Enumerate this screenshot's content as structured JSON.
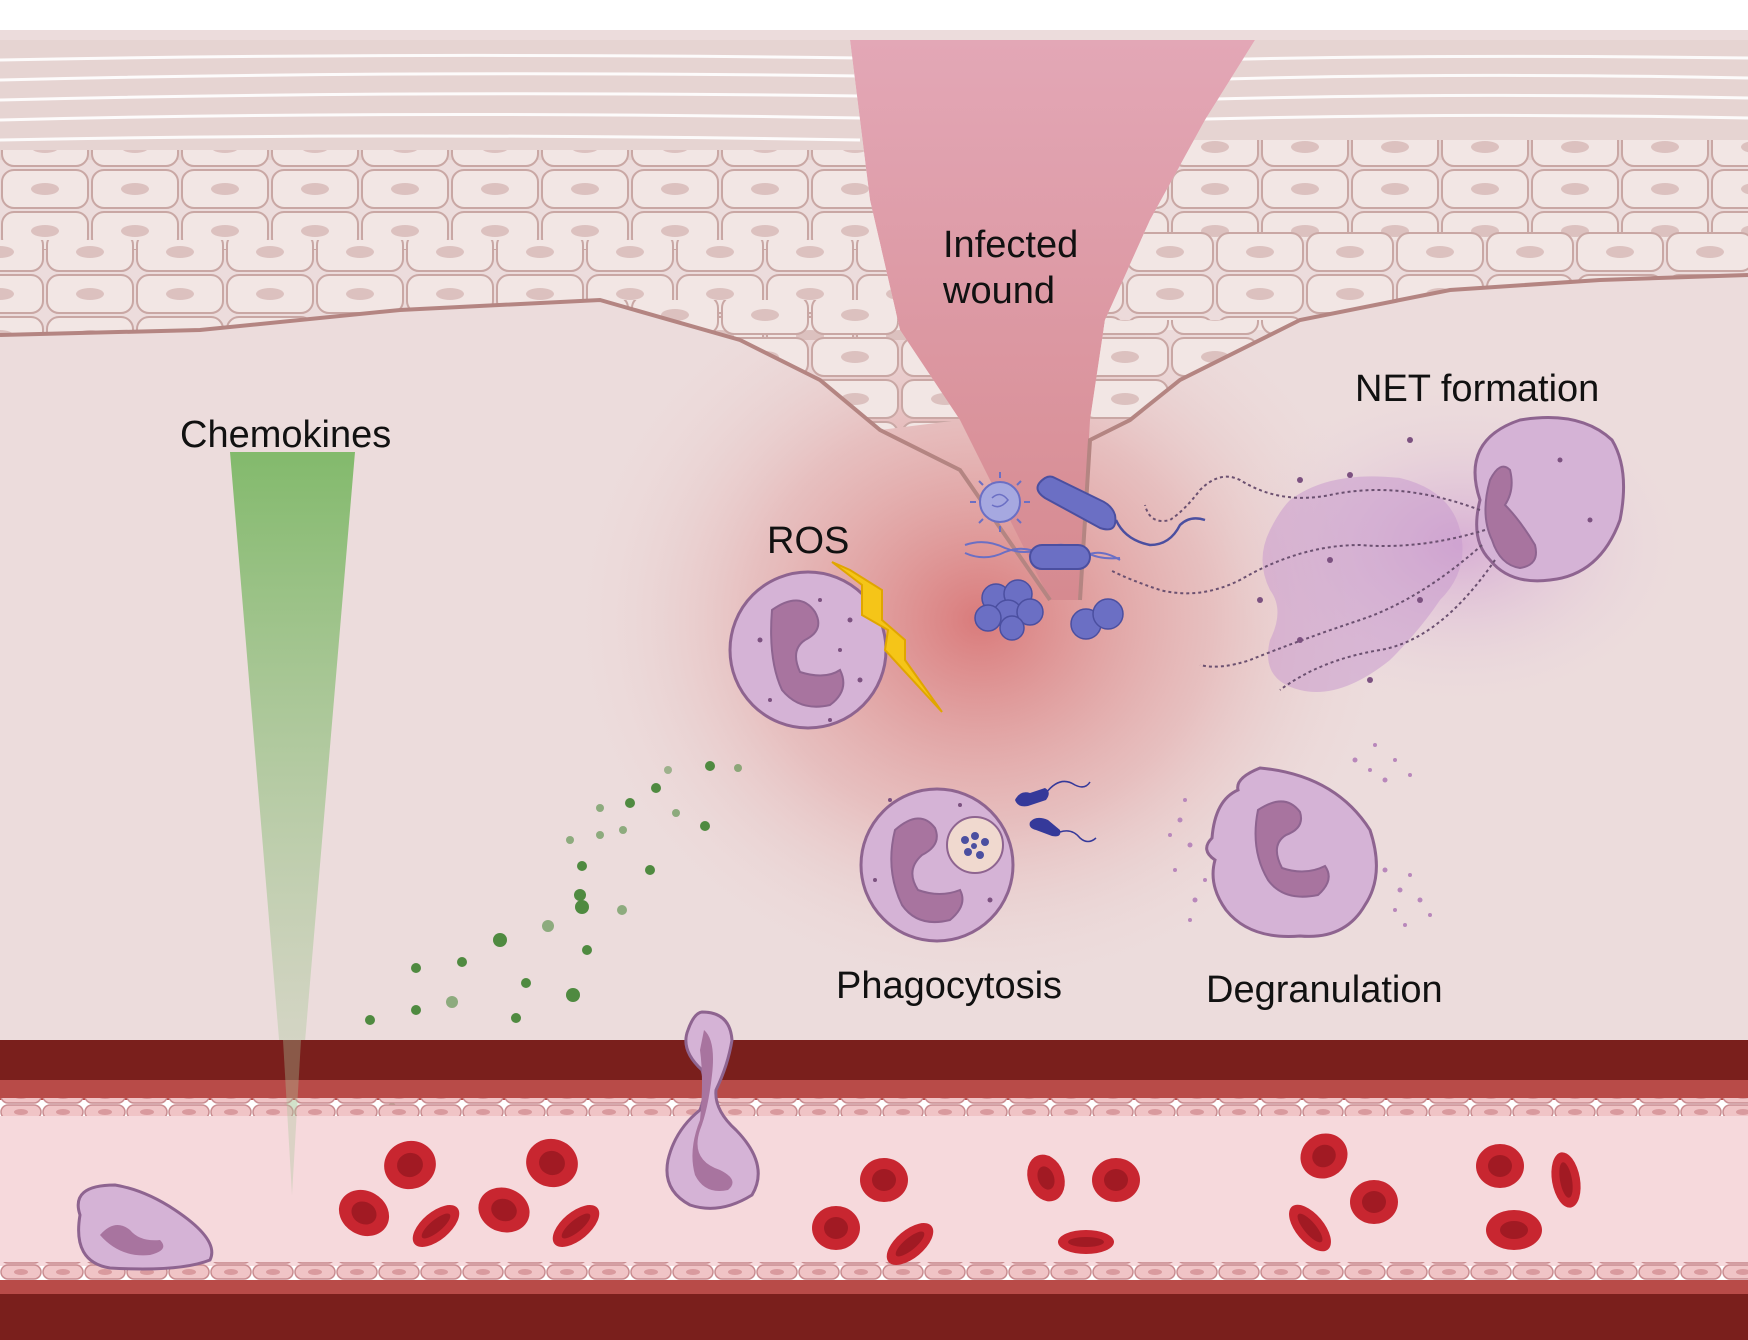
{
  "labels": {
    "infected_wound_line1": "Infected",
    "infected_wound_line2": "wound",
    "chemokines": "Chemokines",
    "ros": "ROS",
    "net_formation": "NET formation",
    "phagocytosis": "Phagocytosis",
    "degranulation": "Degranulation"
  },
  "colors": {
    "dermis": "#ecdcdc",
    "epidermis_cell": "#f1e4e2",
    "epidermis_outline": "#c9a7a4",
    "stratum_corneum": "#e6d4d2",
    "wound_gap": "#e7b6c2",
    "inflammation_glow": "#d96c6c",
    "neutrophil": "#d5b3d6",
    "neutrophil_outline": "#8e6490",
    "nucleus": "#a8749f",
    "bacteria": "#6b6fc4",
    "ros_bolt": "#f5c518",
    "chemokine_gradient": "#7fb56a",
    "chemokine_dot": "#4f8a40",
    "vessel_wall": "#7a1f1c",
    "vessel_lumen": "#f6d9dc",
    "endothelium": "#eab3b6",
    "rbc": "#c82630"
  }
}
